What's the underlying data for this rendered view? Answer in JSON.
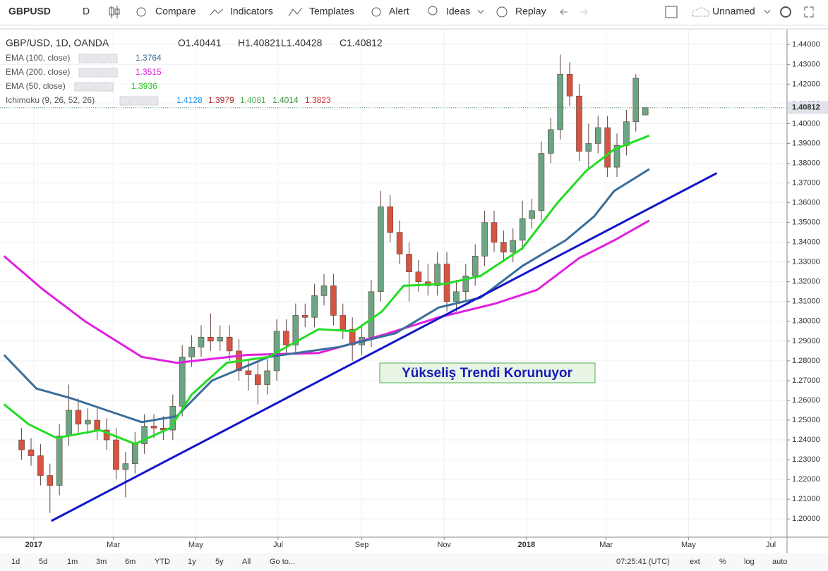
{
  "toolbar": {
    "symbol": "GBPUSD",
    "interval": "D",
    "items": [
      "Compare",
      "Indicators",
      "Templates",
      "Alert",
      "Ideas",
      "Replay"
    ],
    "layout_name": "Unnamed"
  },
  "legend": {
    "title": "GBP/USD, 1D, OANDA",
    "ohlc": [
      "O1.40441",
      "H1.40821",
      "L1.40428",
      "C1.40812"
    ],
    "studies": [
      {
        "name": "EMA (100, close)",
        "values": [
          "1.3764"
        ],
        "colors": [
          "#3a6e9a"
        ]
      },
      {
        "name": "EMA (200, close)",
        "values": [
          "1.3515"
        ],
        "colors": [
          "#e020e0"
        ]
      },
      {
        "name": "EMA (50, close)",
        "values": [
          "1.3936"
        ],
        "colors": [
          "#22cc22"
        ]
      },
      {
        "name": "Ichimoku (9, 26, 52, 26)",
        "values": [
          "1.4128",
          "1.3979",
          "1.4081",
          "1.4014",
          "1.3823"
        ],
        "colors": [
          "#2196f3",
          "#a52a2a",
          "#4caf50",
          "#388e3c",
          "#d32f2f"
        ]
      }
    ]
  },
  "chart_data": {
    "type": "candlestick",
    "up_color": "#6ba583",
    "down_color": "#d75442",
    "x": [
      -9,
      -2,
      5,
      12,
      19,
      26,
      33,
      40,
      47,
      54,
      61,
      68,
      75,
      82,
      89,
      96,
      103,
      110,
      117,
      124,
      131,
      138,
      145,
      152,
      159,
      166,
      173,
      180,
      187,
      194,
      201,
      208,
      215,
      222,
      229,
      236,
      243,
      250,
      257,
      264,
      271,
      278,
      285,
      292,
      299,
      306,
      313,
      320,
      327,
      334,
      341,
      348,
      355,
      362,
      369,
      376,
      383,
      390,
      397,
      404,
      411,
      418,
      425,
      432,
      439,
      446,
      453
    ],
    "open": [
      1.24,
      1.235,
      1.232,
      1.222,
      1.217,
      1.242,
      1.255,
      1.248,
      1.25,
      1.245,
      1.24,
      1.225,
      1.228,
      1.238,
      1.247,
      1.246,
      1.245,
      1.257,
      1.282,
      1.287,
      1.292,
      1.29,
      1.292,
      1.285,
      1.275,
      1.273,
      1.268,
      1.275,
      1.295,
      1.288,
      1.303,
      1.302,
      1.313,
      1.318,
      1.303,
      1.296,
      1.288,
      1.292,
      1.315,
      1.358,
      1.345,
      1.334,
      1.325,
      1.32,
      1.318,
      1.329,
      1.31,
      1.315,
      1.323,
      1.333,
      1.35,
      1.34,
      1.335,
      1.341,
      1.352,
      1.356,
      1.385,
      1.397,
      1.425,
      1.414,
      1.386,
      1.39,
      1.398,
      1.378,
      1.389,
      1.401,
      1.40441
    ],
    "high": [
      1.246,
      1.241,
      1.238,
      1.228,
      1.248,
      1.268,
      1.261,
      1.256,
      1.256,
      1.251,
      1.246,
      1.234,
      1.244,
      1.253,
      1.253,
      1.252,
      1.263,
      1.288,
      1.293,
      1.298,
      1.304,
      1.298,
      1.298,
      1.291,
      1.281,
      1.28,
      1.281,
      1.301,
      1.301,
      1.309,
      1.309,
      1.319,
      1.324,
      1.324,
      1.309,
      1.302,
      1.298,
      1.321,
      1.366,
      1.364,
      1.351,
      1.34,
      1.331,
      1.329,
      1.335,
      1.335,
      1.321,
      1.329,
      1.339,
      1.356,
      1.356,
      1.346,
      1.347,
      1.361,
      1.362,
      1.391,
      1.403,
      1.435,
      1.431,
      1.42,
      1.4,
      1.404,
      1.404,
      1.395,
      1.407,
      1.425,
      1.40821
    ],
    "low": [
      1.23,
      1.227,
      1.217,
      1.203,
      1.212,
      1.237,
      1.243,
      1.243,
      1.24,
      1.235,
      1.22,
      1.211,
      1.223,
      1.233,
      1.241,
      1.24,
      1.24,
      1.252,
      1.277,
      1.282,
      1.285,
      1.285,
      1.28,
      1.27,
      1.265,
      1.258,
      1.263,
      1.27,
      1.283,
      1.283,
      1.297,
      1.297,
      1.308,
      1.298,
      1.291,
      1.28,
      1.283,
      1.287,
      1.31,
      1.34,
      1.329,
      1.31,
      1.315,
      1.313,
      1.313,
      1.305,
      1.305,
      1.31,
      1.318,
      1.328,
      1.335,
      1.33,
      1.33,
      1.336,
      1.347,
      1.351,
      1.38,
      1.392,
      1.409,
      1.381,
      1.377,
      1.385,
      1.373,
      1.373,
      1.384,
      1.396,
      1.40428
    ],
    "close": [
      1.235,
      1.232,
      1.222,
      1.217,
      1.242,
      1.255,
      1.248,
      1.25,
      1.245,
      1.24,
      1.225,
      1.228,
      1.238,
      1.247,
      1.246,
      1.245,
      1.257,
      1.282,
      1.287,
      1.292,
      1.29,
      1.292,
      1.285,
      1.275,
      1.273,
      1.268,
      1.275,
      1.295,
      1.288,
      1.303,
      1.302,
      1.313,
      1.318,
      1.303,
      1.296,
      1.288,
      1.292,
      1.315,
      1.358,
      1.345,
      1.334,
      1.325,
      1.32,
      1.318,
      1.329,
      1.31,
      1.315,
      1.323,
      1.333,
      1.35,
      1.34,
      1.335,
      1.341,
      1.352,
      1.356,
      1.385,
      1.397,
      1.425,
      1.414,
      1.386,
      1.39,
      1.398,
      1.378,
      1.389,
      1.401,
      1.423,
      1.40812
    ],
    "lines": [
      {
        "name": "EMA (200, close)",
        "color": "#e020e0",
        "x": [
          -22,
          7,
          38,
          80,
          106,
          158,
          211,
          258,
          300,
          342,
          373,
          404,
          430,
          456
        ],
        "values": [
          1.333,
          1.316,
          1.3,
          1.282,
          1.279,
          1.283,
          1.284,
          1.293,
          1.302,
          1.309,
          1.316,
          1.332,
          1.341,
          1.351
        ]
      },
      {
        "name": "EMA (100, close)",
        "color": "#3a6e9a",
        "x": [
          -22,
          2,
          28,
          54,
          80,
          106,
          132,
          174,
          226,
          268,
          300,
          331,
          362,
          394,
          415,
          430,
          456
        ],
        "values": [
          1.283,
          1.266,
          1.261,
          1.255,
          1.249,
          1.252,
          1.27,
          1.282,
          1.287,
          1.294,
          1.307,
          1.312,
          1.328,
          1.341,
          1.353,
          1.366,
          1.377
        ]
      },
      {
        "name": "EMA (50, close)",
        "color": "#22dd22",
        "x": [
          -22,
          -4,
          17,
          49,
          75,
          101,
          117,
          143,
          174,
          211,
          237,
          258,
          274,
          305,
          331,
          362,
          388,
          409,
          430,
          456
        ],
        "values": [
          1.258,
          1.248,
          1.241,
          1.245,
          1.238,
          1.246,
          1.263,
          1.279,
          1.282,
          1.296,
          1.295,
          1.305,
          1.318,
          1.319,
          1.323,
          1.337,
          1.36,
          1.376,
          1.387,
          1.394
        ]
      }
    ],
    "trendline": {
      "color": "#1414c8",
      "x": [
        13,
        506
      ],
      "values": [
        1.199,
        1.375
      ]
    },
    "annotation": "Yükseliş Trendi Korunuyor",
    "last_price": 1.40812,
    "xlim": [
      -25,
      558
    ],
    "ylim": [
      1.1908,
      1.4476
    ],
    "xticks": [
      {
        "value": 0,
        "label": "2017"
      },
      {
        "value": 59,
        "label": "Mar"
      },
      {
        "value": 120,
        "label": "May"
      },
      {
        "value": 181,
        "label": "Jul"
      },
      {
        "value": 243,
        "label": "Sep"
      },
      {
        "value": 304,
        "label": "Nov"
      },
      {
        "value": 365,
        "label": "2018"
      },
      {
        "value": 424,
        "label": "Mar"
      },
      {
        "value": 485,
        "label": "May"
      },
      {
        "value": 546,
        "label": "Jul"
      }
    ],
    "yticks": [
      {
        "value": 1.2,
        "label": "1.20000"
      },
      {
        "value": 1.21,
        "label": "1.21000"
      },
      {
        "value": 1.22,
        "label": "1.22000"
      },
      {
        "value": 1.23,
        "label": "1.23000"
      },
      {
        "value": 1.24,
        "label": "1.24000"
      },
      {
        "value": 1.25,
        "label": "1.25000"
      },
      {
        "value": 1.26,
        "label": "1.26000"
      },
      {
        "value": 1.27,
        "label": "1.27000"
      },
      {
        "value": 1.28,
        "label": "1.28000"
      },
      {
        "value": 1.29,
        "label": "1.29000"
      },
      {
        "value": 1.3,
        "label": "1.30000"
      },
      {
        "value": 1.31,
        "label": "1.31000"
      },
      {
        "value": 1.32,
        "label": "1.32000"
      },
      {
        "value": 1.33,
        "label": "1.33000"
      },
      {
        "value": 1.34,
        "label": "1.34000"
      },
      {
        "value": 1.35,
        "label": "1.35000"
      },
      {
        "value": 1.36,
        "label": "1.36000"
      },
      {
        "value": 1.37,
        "label": "1.37000"
      },
      {
        "value": 1.38,
        "label": "1.38000"
      },
      {
        "value": 1.39,
        "label": "1.39000"
      },
      {
        "value": 1.4,
        "label": "1.40000"
      },
      {
        "value": 1.41,
        "label": "1.41000"
      },
      {
        "value": 1.42,
        "label": "1.42000"
      },
      {
        "value": 1.43,
        "label": "1.43000"
      },
      {
        "value": 1.44,
        "label": "1.44000"
      }
    ],
    "grid": true
  },
  "bottom_bar": {
    "ranges": [
      "1d",
      "5d",
      "1m",
      "3m",
      "6m",
      "YTD",
      "1y",
      "5y",
      "All"
    ],
    "goto": "Go to...",
    "clock": "07:25:41 (UTC)",
    "options": [
      "ext",
      "%",
      "log",
      "auto"
    ]
  }
}
